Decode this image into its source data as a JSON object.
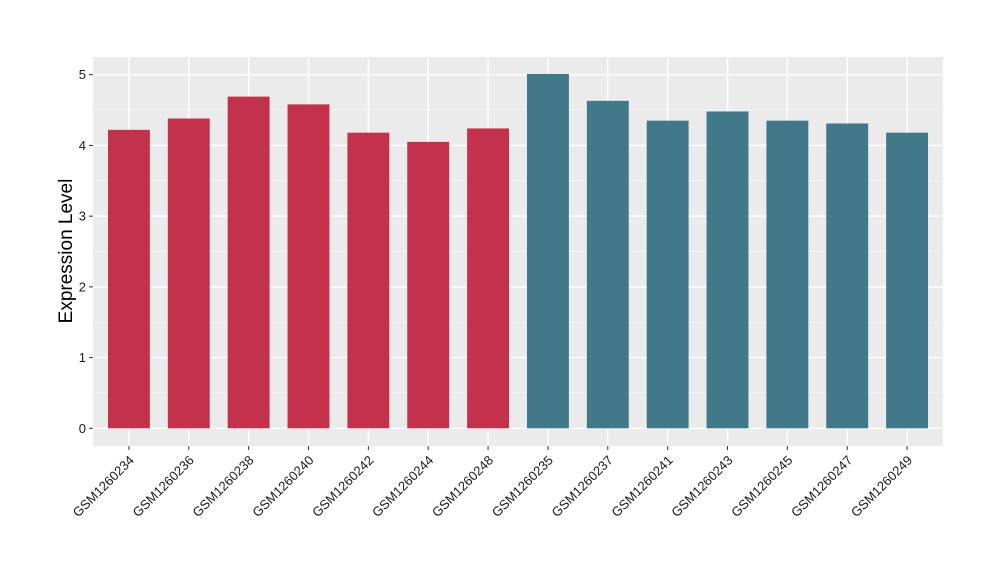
{
  "chart_data": {
    "type": "bar",
    "ylabel": "Expression Level",
    "xlabel": "",
    "ylim": [
      -0.25,
      5.25
    ],
    "yticks": [
      0,
      1,
      2,
      3,
      4,
      5
    ],
    "grid": true,
    "panel_background": "#EBEBEB",
    "categories": [
      "GSM1260234",
      "GSM1260236",
      "GSM1260238",
      "GSM1260240",
      "GSM1260242",
      "GSM1260244",
      "GSM1260248",
      "GSM1260235",
      "GSM1260237",
      "GSM1260241",
      "GSM1260243",
      "GSM1260245",
      "GSM1260247",
      "GSM1260249"
    ],
    "values": [
      4.22,
      4.38,
      4.69,
      4.58,
      4.18,
      4.05,
      4.24,
      5.01,
      4.63,
      4.35,
      4.48,
      4.35,
      4.31,
      4.18
    ],
    "bar_colors": [
      "#C4314B",
      "#C4314B",
      "#C4314B",
      "#C4314B",
      "#C4314B",
      "#C4314B",
      "#C4314B",
      "#41788A",
      "#41788A",
      "#41788A",
      "#41788A",
      "#41788A",
      "#41788A",
      "#41788A"
    ]
  }
}
